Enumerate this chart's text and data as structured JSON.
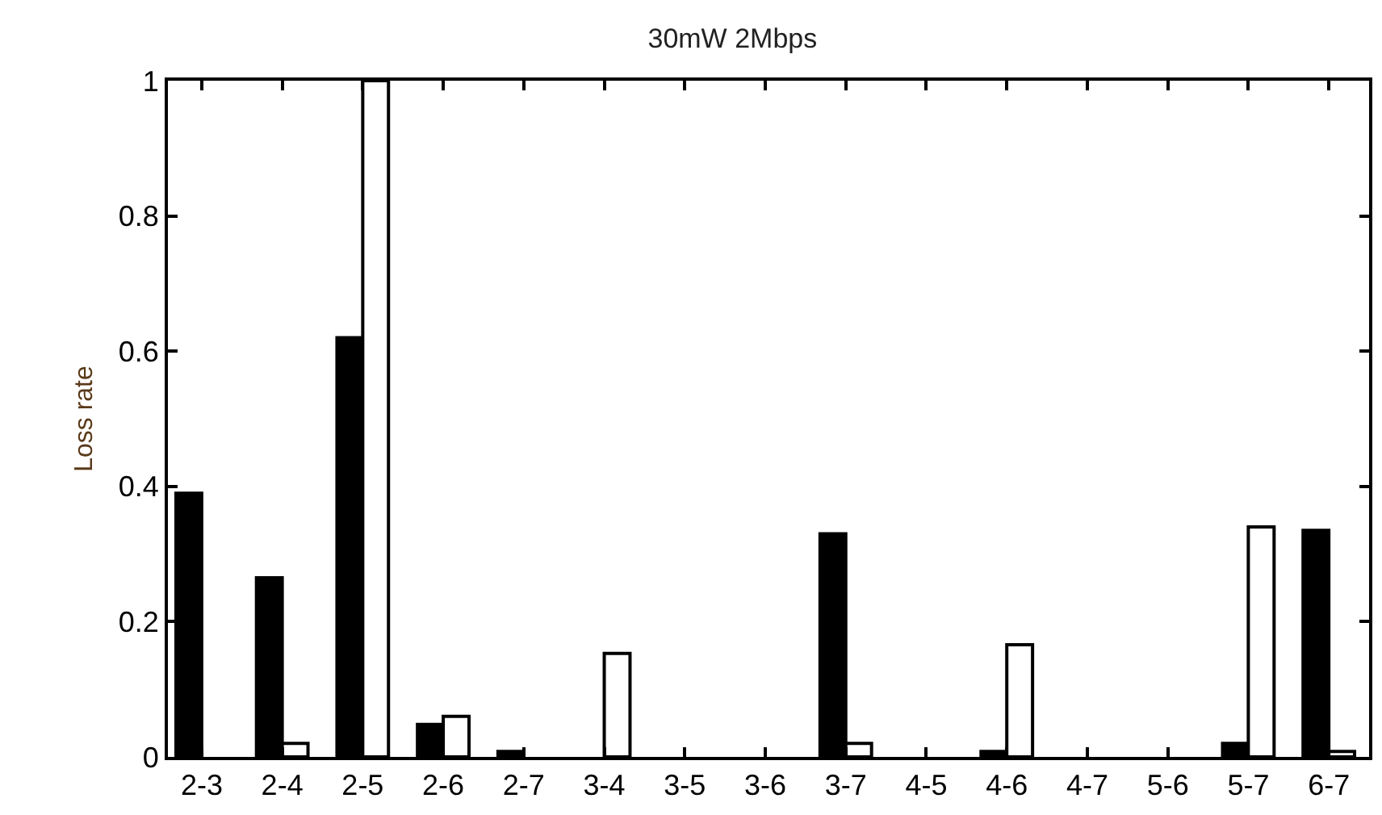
{
  "chart_data": {
    "type": "bar",
    "title": "30mW 2Mbps",
    "ylabel": "Loss rate",
    "categories": [
      "2-3",
      "2-4",
      "2-5",
      "2-6",
      "2-7",
      "3-4",
      "3-5",
      "3-6",
      "3-7",
      "4-5",
      "4-6",
      "4-7",
      "5-6",
      "5-7",
      "6-7"
    ],
    "series": [
      {
        "color": "#000000",
        "values": [
          0.39,
          0.265,
          0.62,
          0.048,
          0.008,
          0,
          0,
          0,
          0.33,
          0,
          0.008,
          0,
          0,
          0.02,
          0.335
        ]
      },
      {
        "color": "#ffffff",
        "values": [
          0,
          0.02,
          1.0,
          0.06,
          0,
          0.153,
          0,
          0,
          0.02,
          0,
          0.166,
          0,
          0,
          0.34,
          0.008
        ]
      }
    ],
    "ylim": [
      0,
      1
    ],
    "yticks": [
      0,
      0.2,
      0.4,
      0.6,
      0.8,
      1
    ],
    "grid": false
  }
}
